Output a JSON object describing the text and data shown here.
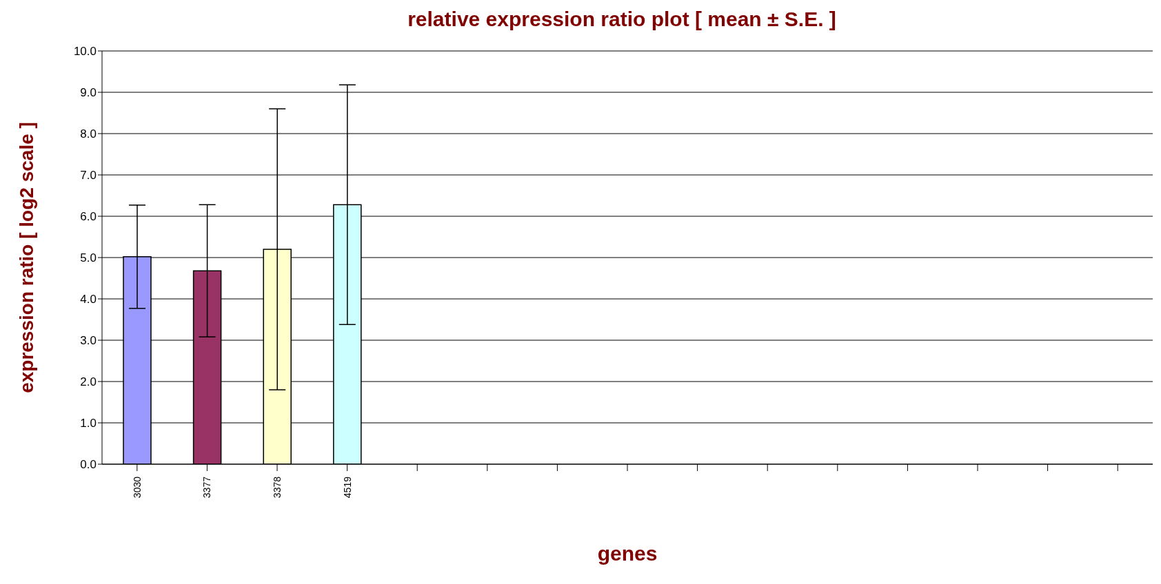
{
  "chart_data": {
    "type": "bar",
    "title": "relative expression ratio plot [ mean ± S.E. ]",
    "xlabel": "genes",
    "ylabel": "expression ratio [ log2 scale ]",
    "categories": [
      "3030",
      "3377",
      "3378",
      "4519",
      null,
      null,
      null,
      null,
      null,
      null,
      null,
      null,
      null,
      null,
      null
    ],
    "values": [
      5.02,
      4.68,
      5.2,
      6.28,
      null,
      null,
      null,
      null,
      null,
      null,
      null,
      null,
      null,
      null,
      null
    ],
    "errors": [
      1.25,
      1.6,
      3.4,
      2.9,
      null,
      null,
      null,
      null,
      null,
      null,
      null,
      null,
      null,
      null,
      null
    ],
    "colors": [
      "#9999ff",
      "#993366",
      "#ffffcc",
      "#ccffff",
      null,
      null,
      null,
      null,
      null,
      null,
      null,
      null,
      null,
      null,
      null
    ],
    "ylim": [
      0,
      10
    ],
    "yticks": [
      {
        "value": 0,
        "label": "0.0"
      },
      {
        "value": 1,
        "label": "1.0"
      },
      {
        "value": 2,
        "label": "2.0"
      },
      {
        "value": 3,
        "label": "3.0"
      },
      {
        "value": 4,
        "label": "4.0"
      },
      {
        "value": 5,
        "label": "5.0"
      },
      {
        "value": 6,
        "label": "6.0"
      },
      {
        "value": 7,
        "label": "7.0"
      },
      {
        "value": 8,
        "label": "8.0"
      },
      {
        "value": 9,
        "label": "9.0"
      },
      {
        "value": 10,
        "label": "10.0"
      }
    ],
    "grid": "y",
    "legend": false
  }
}
